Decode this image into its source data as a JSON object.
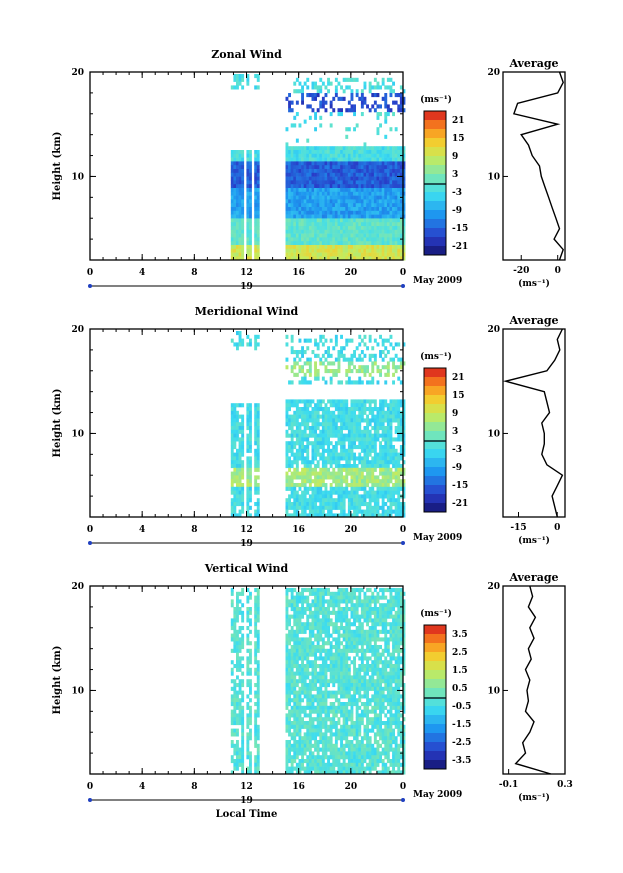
{
  "chart_data": [
    {
      "type": "heatmap",
      "title": "Zonal Wind",
      "ylabel": "Height (km)",
      "y_ticks": [
        "10",
        "20"
      ],
      "x_ticks": [
        "0",
        "4",
        "8",
        "12",
        "16",
        "20",
        "0"
      ],
      "date_label": "19",
      "month_label": "May 2009",
      "xlim": [
        0,
        24
      ],
      "ylim": [
        2,
        20
      ],
      "colorbar": {
        "unit": "(ms⁻¹)",
        "ticks": [
          "21",
          "15",
          "9",
          "3",
          "-3",
          "-9",
          "-15",
          "-21"
        ],
        "range": [
          -24,
          24
        ]
      },
      "average": {
        "title": "Average",
        "xlabel": "(ms⁻¹)",
        "x_ticks": [
          "-20",
          "0"
        ],
        "y_ticks": [
          "10",
          "20"
        ],
        "xlim": [
          -30,
          4
        ],
        "heights": [
          2,
          3,
          4,
          5,
          6,
          7,
          8,
          9,
          10,
          11,
          12,
          13,
          14,
          15,
          16,
          17,
          18,
          19,
          20
        ],
        "values": [
          1,
          3,
          -2,
          1,
          -1,
          -3,
          -5,
          -7,
          -9,
          -10,
          -14,
          -16,
          -20,
          0,
          -24,
          -22,
          0,
          3,
          1
        ]
      }
    },
    {
      "type": "heatmap",
      "title": "Meridional Wind",
      "ylabel": "Height (km)",
      "y_ticks": [
        "10",
        "20"
      ],
      "x_ticks": [
        "0",
        "4",
        "8",
        "12",
        "16",
        "20",
        "0"
      ],
      "date_label": "19",
      "month_label": "May 2009",
      "xlim": [
        0,
        24
      ],
      "ylim": [
        2,
        20
      ],
      "colorbar": {
        "unit": "(ms⁻¹)",
        "ticks": [
          "21",
          "15",
          "9",
          "3",
          "-3",
          "-9",
          "-15",
          "-21"
        ],
        "range": [
          -24,
          24
        ]
      },
      "average": {
        "title": "Average",
        "xlabel": "(ms⁻¹)",
        "x_ticks": [
          "-15",
          "0"
        ],
        "y_ticks": [
          "10",
          "20"
        ],
        "xlim": [
          -21,
          3
        ],
        "heights": [
          2,
          3,
          4,
          5,
          6,
          7,
          8,
          9,
          10,
          11,
          12,
          13,
          14,
          15,
          16,
          17,
          18,
          19,
          20
        ],
        "values": [
          0,
          -1,
          -2,
          0,
          2,
          -4,
          -6,
          -5,
          -5,
          -6,
          -3,
          -4,
          -5,
          -20,
          -4,
          -1,
          1,
          0,
          2
        ]
      }
    },
    {
      "type": "heatmap",
      "title": "Vertical Wind",
      "ylabel": "Height (km)",
      "y_ticks": [
        "10",
        "20"
      ],
      "x_ticks": [
        "0",
        "4",
        "8",
        "12",
        "16",
        "20",
        "0"
      ],
      "date_label": "19",
      "month_label": "May 2009",
      "xlabel": "Local Time",
      "xlim": [
        0,
        24
      ],
      "ylim": [
        2,
        20
      ],
      "colorbar": {
        "unit": "(ms⁻¹)",
        "ticks": [
          "3.5",
          "2.5",
          "1.5",
          "0.5",
          "-0.5",
          "-1.5",
          "-2.5",
          "-3.5"
        ],
        "range": [
          -4,
          4
        ]
      },
      "average": {
        "title": "Average",
        "xlabel": "(ms⁻¹)",
        "x_ticks": [
          "-0.1",
          "0.3"
        ],
        "y_ticks": [
          "10",
          "20"
        ],
        "xlim": [
          -0.14,
          0.3
        ],
        "heights": [
          2,
          3,
          4,
          5,
          6,
          7,
          8,
          9,
          10,
          11,
          12,
          13,
          14,
          15,
          16,
          17,
          18,
          19,
          20
        ],
        "values": [
          0.2,
          -0.05,
          0.02,
          0.0,
          0.05,
          0.08,
          0.02,
          0.04,
          0.03,
          0.05,
          0.02,
          0.06,
          0.04,
          0.08,
          0.05,
          0.09,
          0.04,
          0.07,
          0.05
        ]
      }
    }
  ]
}
